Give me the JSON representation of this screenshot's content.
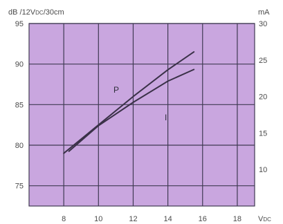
{
  "chart_data": {
    "type": "line",
    "left_axis": {
      "label": "dB /12V",
      "label_sub": "DC",
      "label_tail": "/30cm",
      "ylim": [
        72.5,
        95
      ],
      "ticks": [
        "75",
        "80",
        "85",
        "90",
        "95"
      ]
    },
    "right_axis": {
      "label": "mA",
      "ylim": [
        5,
        30
      ],
      "ticks": [
        "10",
        "15",
        "20",
        "25",
        "30"
      ]
    },
    "x_axis": {
      "label": "V",
      "label_sub": "DC",
      "xlim": [
        6,
        19
      ],
      "ticks": [
        "8",
        "10",
        "12",
        "14",
        "16",
        "18"
      ]
    },
    "grid": true,
    "colors": {
      "plot_background": "#c9a6df",
      "grid": "#3f3a52",
      "curve": "#3a3148"
    },
    "series": [
      {
        "name": "P",
        "axis": "left",
        "points": [
          [
            8,
            79
          ],
          [
            10,
            82.5
          ],
          [
            12,
            86
          ],
          [
            14,
            89.3
          ],
          [
            15.5,
            91.5
          ]
        ]
      },
      {
        "name": "I",
        "axis": "right",
        "points": [
          [
            8.3,
            12.5
          ],
          [
            10,
            16
          ],
          [
            12,
            19.2
          ],
          [
            14,
            22.1
          ],
          [
            15.5,
            23.7
          ]
        ]
      }
    ]
  }
}
